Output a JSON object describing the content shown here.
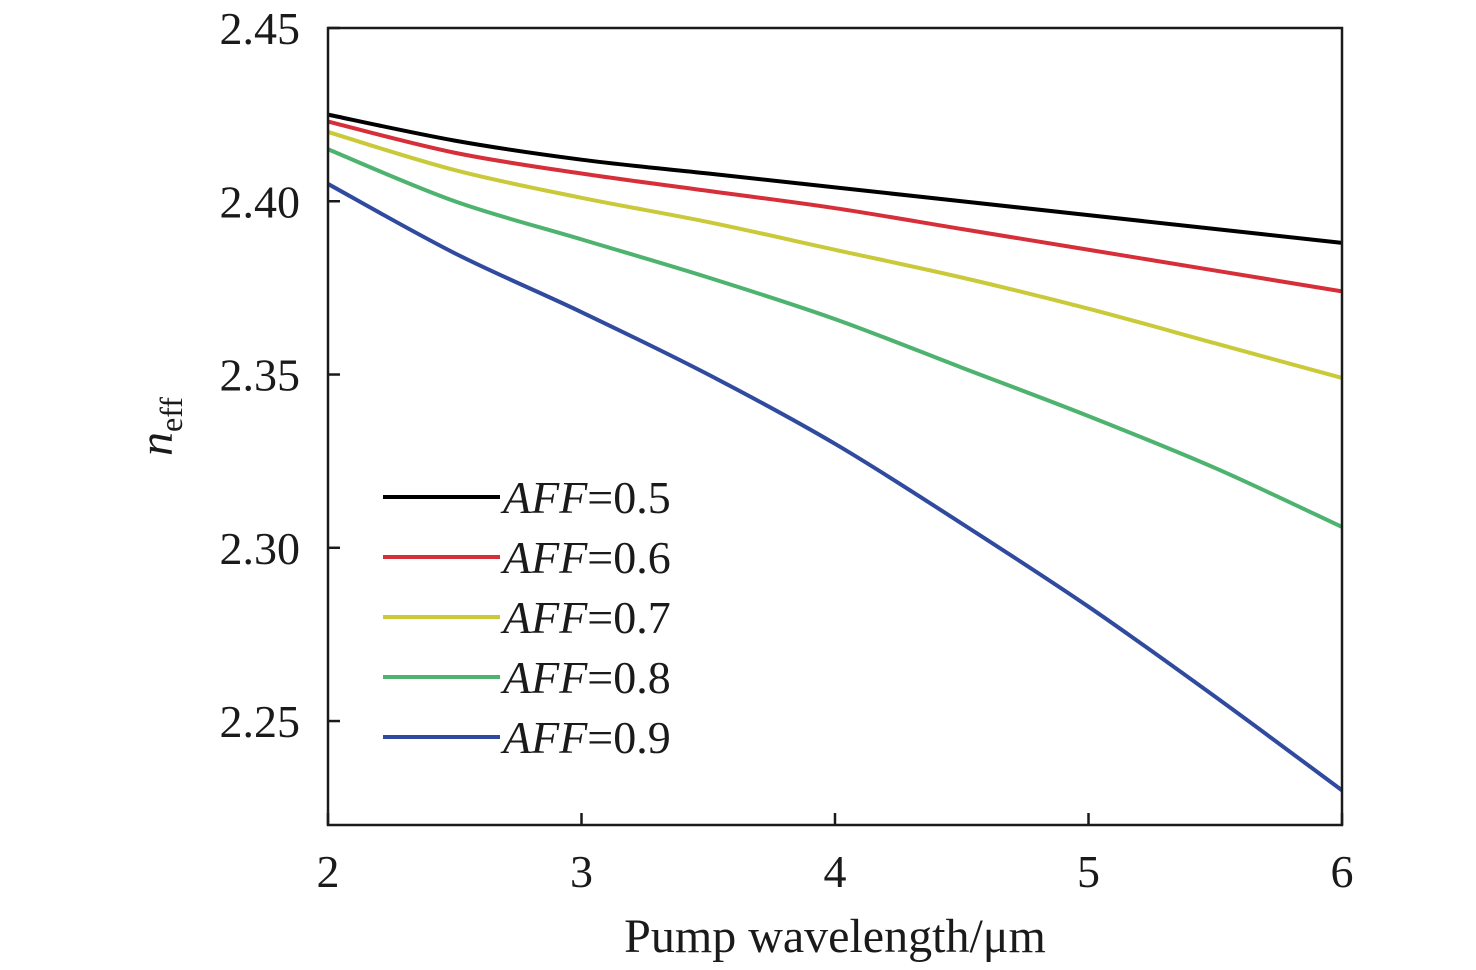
{
  "chart_data": {
    "type": "line",
    "title": "",
    "xlabel": "Pump wavelength/μm",
    "ylabel": {
      "main": "n",
      "sub": "eff"
    },
    "xlim": [
      2,
      6
    ],
    "ylim": [
      2.22,
      2.45
    ],
    "xticks": [
      "2",
      "3",
      "4",
      "5",
      "6"
    ],
    "yticks": [
      "2.25",
      "2.30",
      "2.35",
      "2.40",
      "2.45"
    ],
    "grid": false,
    "legend_position": "bottom-left",
    "x": [
      2,
      2.5,
      3,
      3.5,
      4,
      4.5,
      5,
      5.5,
      6
    ],
    "series": [
      {
        "name": "AFF=0.5",
        "name_var": "AFF",
        "name_val": "=0.5",
        "color": "#000000",
        "values": [
          2.425,
          2.4175,
          2.412,
          2.408,
          2.404,
          2.4,
          2.396,
          2.392,
          2.388
        ]
      },
      {
        "name": "AFF=0.6",
        "name_var": "AFF",
        "name_val": "=0.6",
        "color": "#d62f3a",
        "values": [
          2.423,
          2.414,
          2.408,
          2.403,
          2.398,
          2.392,
          2.386,
          2.38,
          2.374
        ]
      },
      {
        "name": "AFF=0.7",
        "name_var": "AFF",
        "name_val": "=0.7",
        "color": "#c9c93a",
        "values": [
          2.42,
          2.409,
          2.401,
          2.394,
          2.386,
          2.378,
          2.369,
          2.359,
          2.349
        ]
      },
      {
        "name": "AFF=0.8",
        "name_var": "AFF",
        "name_val": "=0.8",
        "color": "#4db36e",
        "values": [
          2.415,
          2.4,
          2.389,
          2.378,
          2.366,
          2.352,
          2.338,
          2.323,
          2.306
        ]
      },
      {
        "name": "AFF=0.9",
        "name_var": "AFF",
        "name_val": "=0.9",
        "color": "#2f4a9e",
        "values": [
          2.405,
          2.385,
          2.368,
          2.35,
          2.33,
          2.307,
          2.283,
          2.257,
          2.23
        ]
      }
    ]
  }
}
